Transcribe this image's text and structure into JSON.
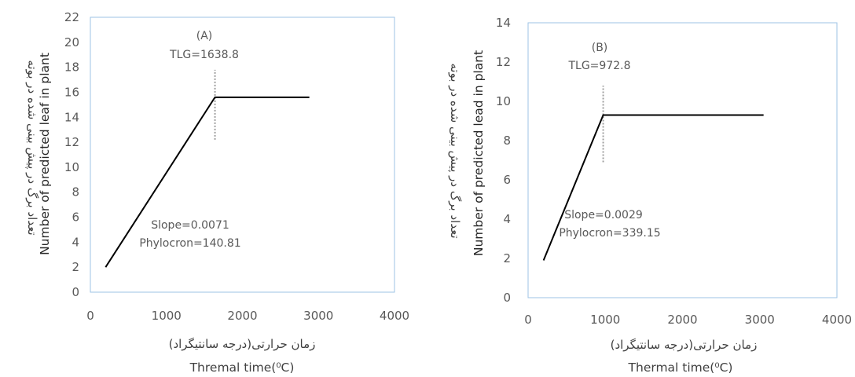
{
  "chart_data": [
    {
      "type": "line",
      "panel_label": "(A)",
      "tlg_text": "TLG=1638.8",
      "slope_text": "Slope=0.0071",
      "phylocron_text": "Phylocron=140.81",
      "xlabel_fa": "زمان حرارتی(درجه سانتیگراد)",
      "xlabel_en": "Thremal time(⁰C)",
      "ylabel_fa": "تعداد برگ در پیش بینی شده در بوته",
      "ylabel_en": "Number of predicted leaf in plant",
      "xlim": [
        0,
        4000
      ],
      "ylim": [
        0,
        22
      ],
      "xticks": [
        0,
        1000,
        2000,
        3000,
        4000
      ],
      "yticks": [
        0,
        2,
        4,
        6,
        8,
        10,
        12,
        14,
        16,
        18,
        20,
        22
      ],
      "series": [
        {
          "x": [
            200,
            1638.8,
            2880
          ],
          "y": [
            2.0,
            15.6,
            15.6
          ],
          "color": "#000000"
        }
      ],
      "tlg_marker": {
        "x": 1638.8,
        "y_range": [
          12.2,
          17.8
        ],
        "color": "#a0a0a0"
      }
    },
    {
      "type": "line",
      "panel_label": "(B)",
      "tlg_text": "TLG=972.8",
      "slope_text": "Slope=0.0029",
      "phylocron_text": "Phylocron=339.15",
      "xlabel_fa": "زمان حرارتی(درجه سانتیگراد)",
      "xlabel_en": "Thermal time(⁰C)",
      "ylabel_fa": "تعداد برگ در پیش بینی شده در بوته",
      "ylabel_en": "Number of predicted lead in plant",
      "xlim": [
        0,
        4000
      ],
      "ylim": [
        0,
        14
      ],
      "xticks": [
        0,
        1000,
        2000,
        3000,
        4000
      ],
      "yticks": [
        0,
        2,
        4,
        6,
        8,
        10,
        12,
        14
      ],
      "series": [
        {
          "x": [
            200,
            972.8,
            3050
          ],
          "y": [
            1.9,
            9.3,
            9.3
          ],
          "color": "#000000"
        }
      ],
      "tlg_marker": {
        "x": 972.8,
        "y_range": [
          6.9,
          10.8
        ],
        "color": "#a0a0a0"
      }
    }
  ],
  "style": {
    "frame_color": "#9dc3e6",
    "text_color": "#595959"
  }
}
